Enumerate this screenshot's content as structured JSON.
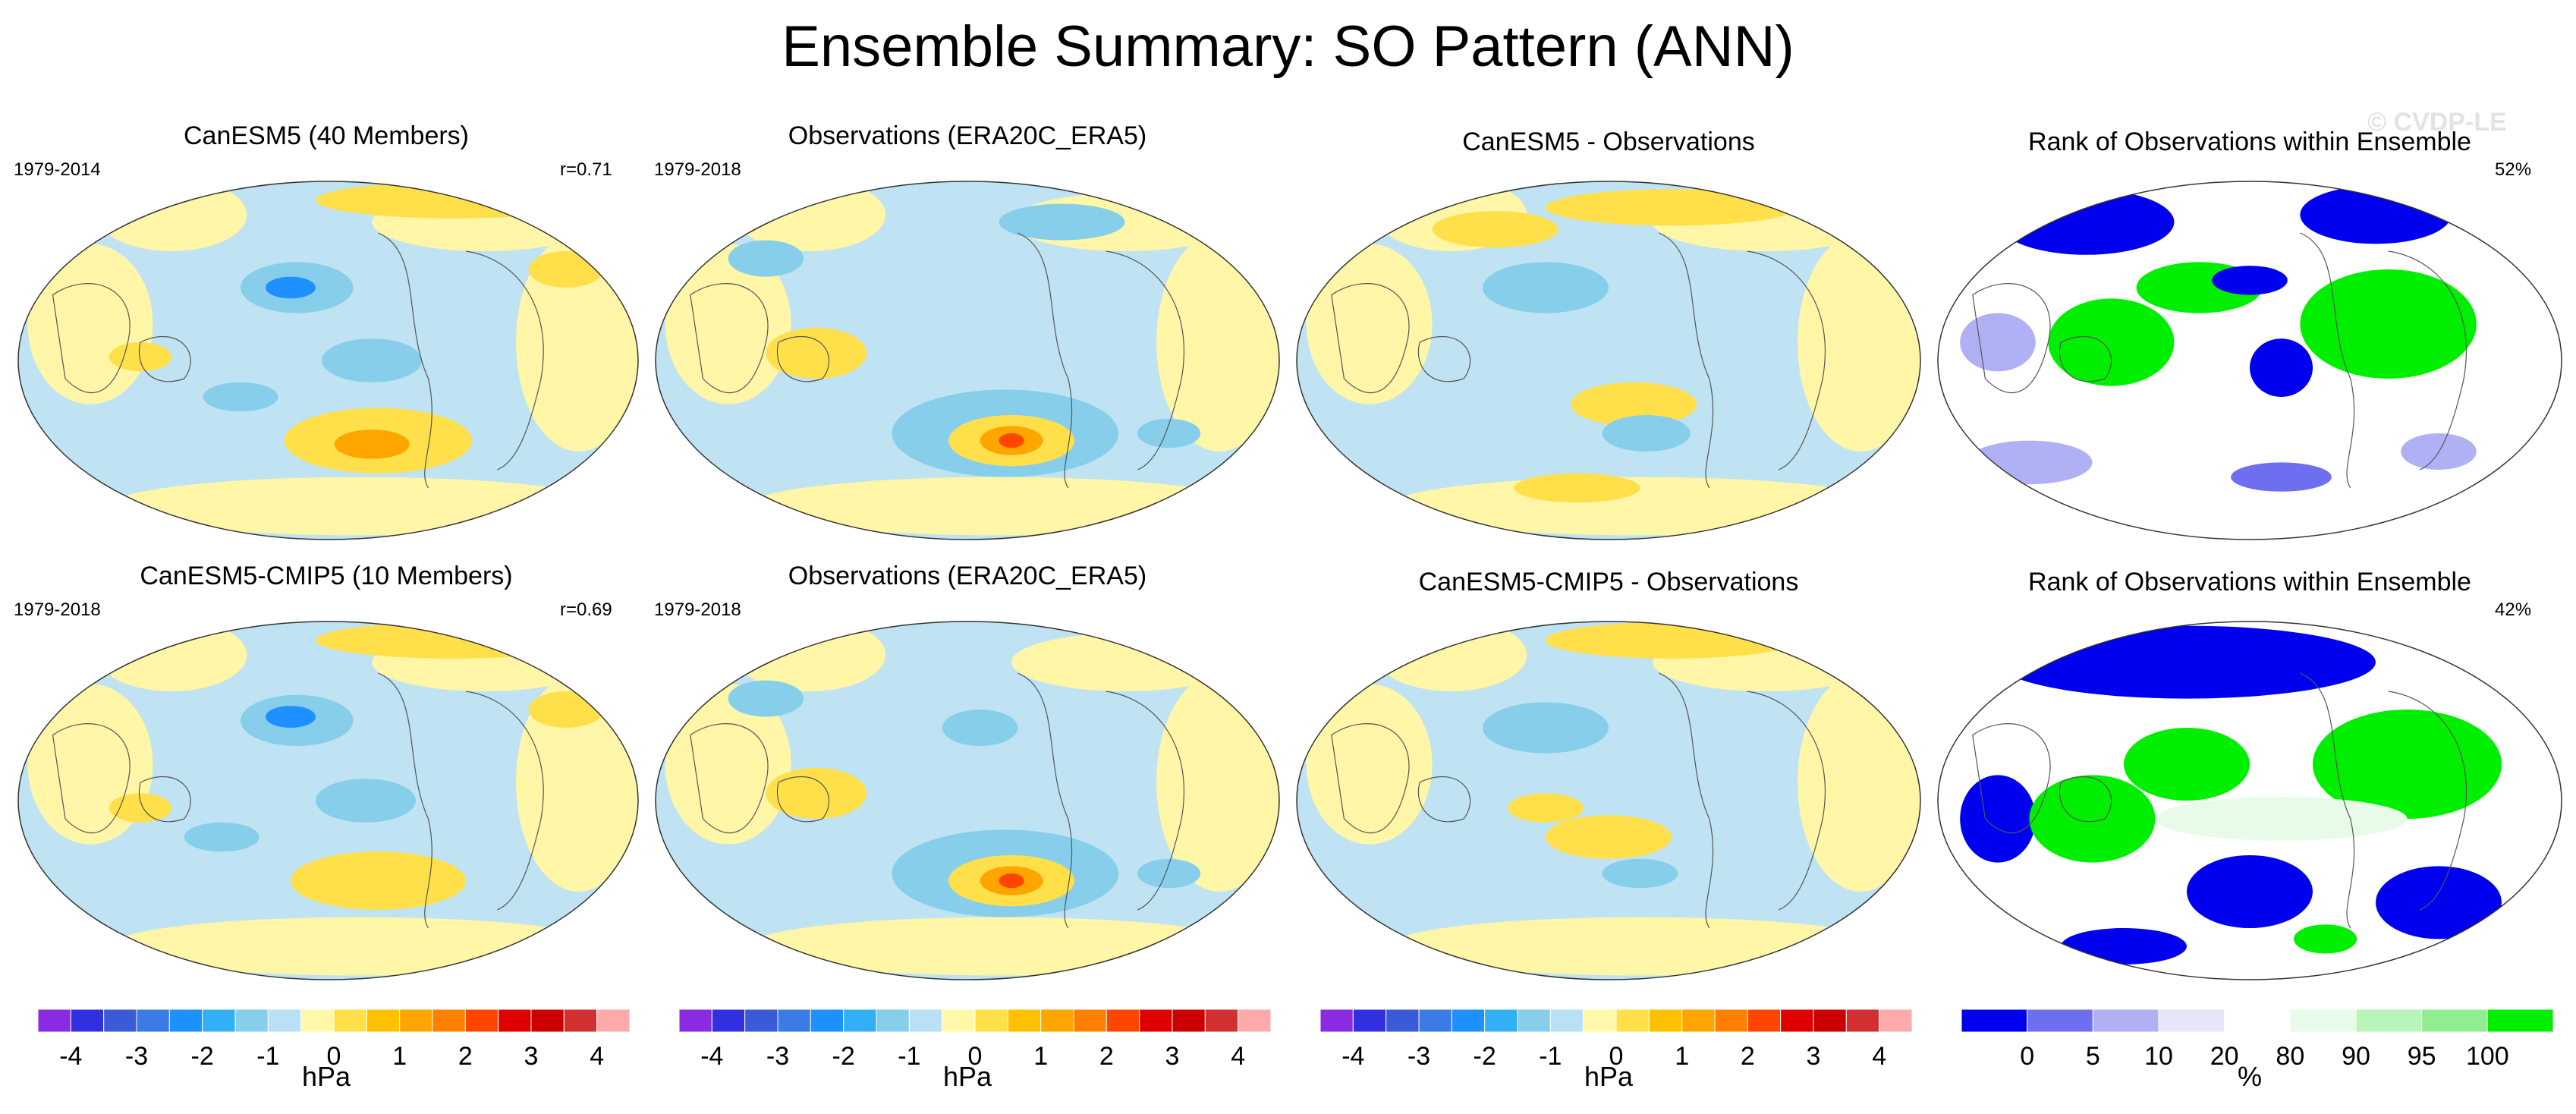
{
  "title": "Ensemble Summary: SO Pattern (ANN)",
  "watermark": "© CVDP-LE",
  "colors": {
    "diverging": [
      "#8a2be2",
      "#3030e0",
      "#3a5ad8",
      "#3b7be6",
      "#1e90ff",
      "#33b0f5",
      "#87ceeb",
      "#b9e0f5",
      "#fff8a8",
      "#ffe04a",
      "#ffc000",
      "#ffa500",
      "#ff7f00",
      "#ff4500",
      "#e00000",
      "#cc0000",
      "#d23030",
      "#ffaaaa"
    ],
    "rank": [
      "#0000ee",
      "#6e6ef0",
      "#b0b0f5",
      "#e6e6fa",
      "#ffffff",
      "#e8fbe8",
      "#b8f5b8",
      "#90ee90",
      "#00ee00"
    ],
    "ocean_neutral": "#bfe3f3",
    "land_neutral": "#fff6a8"
  },
  "panels": [
    {
      "title": "CanESM5 (40 Members)",
      "left_label": "1979-2014",
      "right_label": "r=0.71",
      "kind": "pattern"
    },
    {
      "title": "Observations (ERA20C_ERA5)",
      "left_label": "1979-2018",
      "right_label": "",
      "kind": "pattern"
    },
    {
      "title": "CanESM5 - Observations",
      "left_label": "",
      "right_label": "",
      "kind": "pattern"
    },
    {
      "title": "Rank of Observations within Ensemble",
      "left_label": "",
      "right_label": "52%",
      "kind": "rank"
    },
    {
      "title": "CanESM5-CMIP5 (10 Members)",
      "left_label": "1979-2018",
      "right_label": "r=0.69",
      "kind": "pattern"
    },
    {
      "title": "Observations (ERA20C_ERA5)",
      "left_label": "1979-2018",
      "right_label": "",
      "kind": "pattern"
    },
    {
      "title": "CanESM5-CMIP5 - Observations",
      "left_label": "",
      "right_label": "",
      "kind": "pattern"
    },
    {
      "title": "Rank of Observations within Ensemble",
      "left_label": "",
      "right_label": "42%",
      "kind": "rank"
    }
  ],
  "colorbars": {
    "diverging": {
      "ticks": [
        "-4",
        "-3",
        "-2",
        "-1",
        "0",
        "1",
        "2",
        "3",
        "4"
      ],
      "unit": "hPa"
    },
    "rank": {
      "ticks": [
        "0",
        "5",
        "10",
        "20",
        "80",
        "90",
        "95",
        "100"
      ],
      "unit": "%"
    }
  },
  "chart_data": {
    "type": "heatmap",
    "title": "Ensemble Summary: SO Pattern (ANN)",
    "projection": "global map",
    "pattern_units": "hPa",
    "pattern_levels": [
      -4,
      -3.5,
      -3,
      -2.5,
      -2,
      -1.5,
      -1,
      -0.5,
      0,
      0.5,
      1,
      1.5,
      2,
      2.5,
      3,
      3.5,
      4
    ],
    "rank_units": "%",
    "rank_levels": [
      0,
      5,
      10,
      20,
      80,
      90,
      95,
      100
    ],
    "panels": [
      {
        "name": "CanESM5 (40 Members)",
        "period": "1979-2014",
        "pattern_correlation": 0.71
      },
      {
        "name": "Observations (ERA20C_ERA5)",
        "period": "1979-2018"
      },
      {
        "name": "CanESM5 - Observations"
      },
      {
        "name": "Rank of Observations within Ensemble",
        "percent_summary": 52
      },
      {
        "name": "CanESM5-CMIP5 (10 Members)",
        "period": "1979-2018",
        "pattern_correlation": 0.69
      },
      {
        "name": "Observations (ERA20C_ERA5)",
        "period": "1979-2018"
      },
      {
        "name": "CanESM5-CMIP5 - Observations"
      },
      {
        "name": "Rank of Observations within Ensemble",
        "percent_summary": 42
      }
    ]
  }
}
